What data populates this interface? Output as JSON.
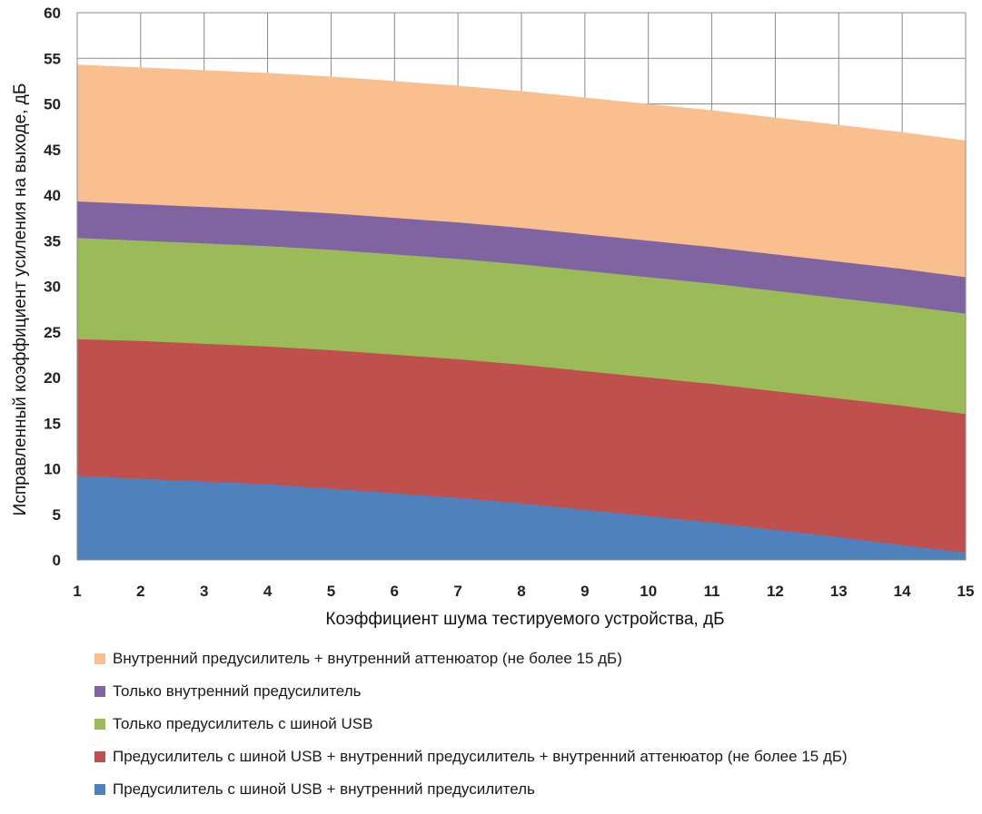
{
  "chart_data": {
    "type": "area",
    "stacked": true,
    "title": "",
    "xlabel": "Коэффициент шума тестируемого устройства, дБ",
    "ylabel": "Исправленный коэффициент усиления на выходе, дБ",
    "xlim": [
      1,
      15
    ],
    "ylim": [
      0,
      60
    ],
    "x_ticks": [
      1,
      2,
      3,
      4,
      5,
      6,
      7,
      8,
      9,
      10,
      11,
      12,
      13,
      14,
      15
    ],
    "y_ticks": [
      0,
      5,
      10,
      15,
      20,
      25,
      30,
      35,
      40,
      45,
      50,
      55,
      60
    ],
    "grid": true,
    "legend_position": "bottom",
    "x": [
      1,
      2,
      3,
      4,
      5,
      6,
      7,
      8,
      9,
      10,
      11,
      12,
      13,
      14,
      15
    ],
    "series": [
      {
        "name": "Внутренний предусилитель + внутренний аттенюатор (не более 15 дБ)",
        "color": "#f9bf8f",
        "upper": [
          54.3,
          54.0,
          53.7,
          53.4,
          53.0,
          52.5,
          52.0,
          51.4,
          50.7,
          50.0,
          49.3,
          48.5,
          47.7,
          46.9,
          46.0
        ]
      },
      {
        "name": "Только внутренний предусилитель",
        "color": "#8064a2",
        "upper": [
          39.3,
          39.0,
          38.7,
          38.4,
          38.0,
          37.5,
          37.0,
          36.4,
          35.7,
          35.0,
          34.3,
          33.5,
          32.7,
          31.9,
          31.0
        ]
      },
      {
        "name": "Только предусилитель с шиной USB",
        "color": "#9bbb59",
        "upper": [
          35.3,
          35.0,
          34.7,
          34.4,
          34.0,
          33.5,
          33.0,
          32.4,
          31.7,
          31.0,
          30.3,
          29.5,
          28.7,
          27.9,
          27.0
        ]
      },
      {
        "name": "Предусилитель с шиной USB + внутренний предусилитель + внутренний аттенюатор (не более 15 дБ)",
        "color": "#c0504d",
        "upper": [
          24.2,
          24.0,
          23.7,
          23.4,
          23.0,
          22.5,
          22.0,
          21.4,
          20.7,
          20.0,
          19.3,
          18.5,
          17.7,
          16.9,
          16.0
        ]
      },
      {
        "name": "Предусилитель с шиной USB + внутренний предусилитель",
        "color": "#4f81bd",
        "upper": [
          9.2,
          8.9,
          8.6,
          8.3,
          7.8,
          7.3,
          6.8,
          6.2,
          5.5,
          4.8,
          4.1,
          3.3,
          2.5,
          1.6,
          0.8
        ]
      }
    ]
  }
}
